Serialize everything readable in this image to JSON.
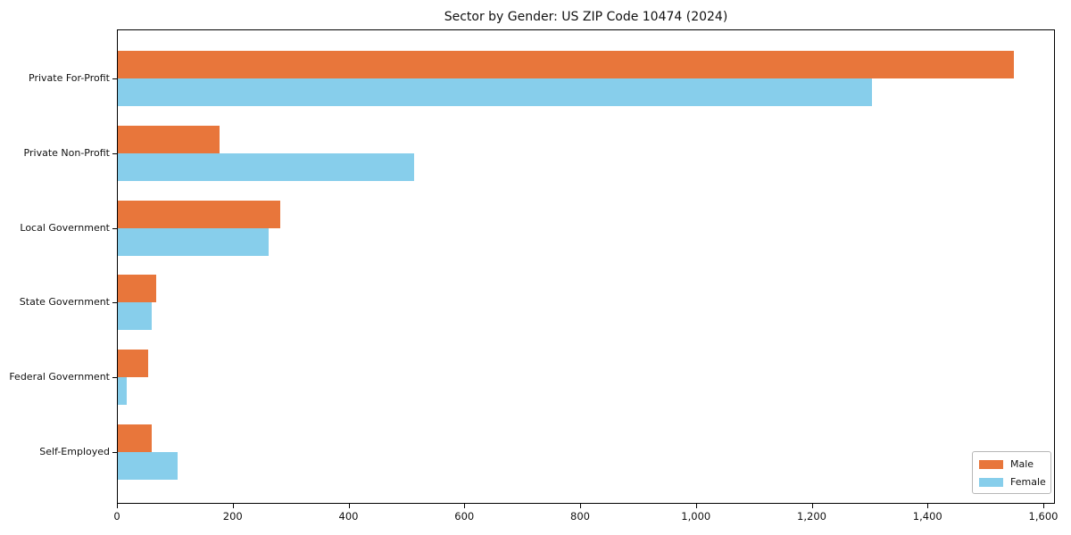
{
  "chart_data": {
    "type": "bar",
    "orientation": "horizontal",
    "title": "Sector by Gender: US ZIP Code 10474 (2024)",
    "categories": [
      "Private For-Profit",
      "Private Non-Profit",
      "Local Government",
      "State Government",
      "Federal Government",
      "Self-Employed"
    ],
    "series": [
      {
        "name": "Male",
        "color": "#e8763b",
        "values": [
          1548,
          175,
          280,
          67,
          52,
          58
        ]
      },
      {
        "name": "Female",
        "color": "#87ceeb",
        "values": [
          1303,
          512,
          260,
          58,
          15,
          104
        ]
      }
    ],
    "xlabel": "",
    "ylabel": "",
    "xlim": [
      0,
      1620
    ],
    "xticks": [
      0,
      200,
      400,
      600,
      800,
      1000,
      1200,
      1400,
      1600
    ],
    "xtick_labels": [
      "0",
      "200",
      "400",
      "600",
      "800",
      "1,000",
      "1,200",
      "1,400",
      "1,600"
    ],
    "grid": false,
    "legend": {
      "position": "lower right",
      "entries": [
        "Male",
        "Female"
      ]
    }
  }
}
